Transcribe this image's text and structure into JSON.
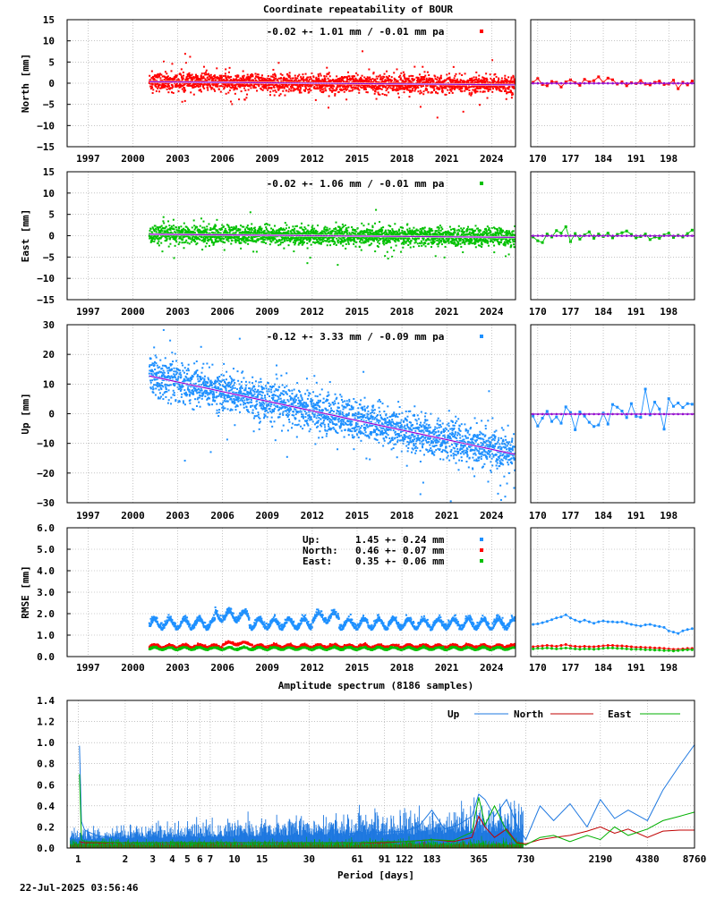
{
  "title": "Coordinate repeatability of BOUR",
  "footer_timestamp": "22-Jul-2025 03:56:46",
  "colors": {
    "north": "#ff0000",
    "east": "#00c000",
    "up": "#1e90ff",
    "trend": "#9400d3",
    "spectrum_up": "#1e78e0",
    "spectrum_north": "#c00000",
    "spectrum_east": "#00b000"
  },
  "left_xticks": [
    "1997",
    "2000",
    "2003",
    "2006",
    "2009",
    "2012",
    "2015",
    "2018",
    "2021",
    "2024"
  ],
  "right_xticks": [
    "170",
    "177",
    "184",
    "191",
    "198"
  ],
  "chart_data": [
    {
      "type": "scatter",
      "name": "north",
      "ylabel": "North [mm]",
      "ylim": [
        -15,
        15
      ],
      "yticks": [
        "15",
        "10",
        "5",
        "0",
        "−5",
        "−10",
        "−15"
      ],
      "annotation": "-0.02 +- 1.01 mm / -0.01 mm pa",
      "data_start_year": 2001.1,
      "data_end_year": 2025.55,
      "mean": -0.02,
      "std": 1.01,
      "trend_mm_per_year": -0.01,
      "recent_days": [
        169,
        170,
        171,
        172,
        173,
        174,
        175,
        176,
        177,
        178,
        179,
        180,
        181,
        182,
        183,
        184,
        185,
        186,
        187,
        188,
        189,
        190,
        191,
        192,
        193,
        194,
        195,
        196,
        197,
        198,
        199,
        200,
        201,
        202,
        203
      ],
      "recent_values": [
        0.2,
        1.1,
        -0.3,
        -0.6,
        0.4,
        0.2,
        -0.9,
        0.3,
        0.8,
        0.1,
        -0.5,
        0.9,
        0.3,
        0.6,
        1.5,
        0.2,
        1.2,
        0.8,
        -0.2,
        0.3,
        -0.6,
        0.1,
        -0.1,
        0.6,
        -0.2,
        -0.4,
        0.2,
        0.5,
        -0.3,
        -0.2,
        0.7,
        -1.3,
        0.2,
        -0.4,
        0.5
      ]
    },
    {
      "type": "scatter",
      "name": "east",
      "ylabel": "East [mm]",
      "ylim": [
        -15,
        15
      ],
      "yticks": [
        "15",
        "10",
        "5",
        "0",
        "−5",
        "−10",
        "−15"
      ],
      "annotation": "-0.02 +- 1.06 mm / -0.01 mm pa",
      "data_start_year": 2001.1,
      "data_end_year": 2025.55,
      "mean": -0.02,
      "std": 1.06,
      "trend_mm_per_year": -0.01,
      "recent_days": [
        169,
        170,
        171,
        172,
        173,
        174,
        175,
        176,
        177,
        178,
        179,
        180,
        181,
        182,
        183,
        184,
        185,
        186,
        187,
        188,
        189,
        190,
        191,
        192,
        193,
        194,
        195,
        196,
        197,
        198,
        199,
        200,
        201,
        202,
        203
      ],
      "recent_values": [
        -0.3,
        -1.2,
        -1.6,
        0.4,
        -0.3,
        1.2,
        0.6,
        2.1,
        -1.4,
        0.5,
        -0.8,
        0.2,
        0.9,
        -0.6,
        0.4,
        -0.2,
        0.6,
        -0.5,
        0.3,
        0.7,
        1.1,
        0.3,
        -0.5,
        -0.2,
        0.4,
        -0.9,
        -0.3,
        -0.6,
        0.2,
        0.6,
        -0.4,
        0.1,
        -0.3,
        0.5,
        1.3
      ]
    },
    {
      "type": "scatter",
      "name": "up",
      "ylabel": "Up [mm]",
      "ylim": [
        -30,
        30
      ],
      "yticks": [
        "30",
        "20",
        "10",
        "0",
        "−10",
        "−20",
        "−30"
      ],
      "annotation": "-0.12 +- 3.33 mm / -0.09 mm pa",
      "data_start_year": 2001.1,
      "data_end_year": 2025.55,
      "mean": -0.12,
      "std": 3.33,
      "trend_mm_per_year": -0.09,
      "recent_days": [
        169,
        170,
        171,
        172,
        173,
        174,
        175,
        176,
        177,
        178,
        179,
        180,
        181,
        182,
        183,
        184,
        185,
        186,
        187,
        188,
        189,
        190,
        191,
        192,
        193,
        194,
        195,
        196,
        197,
        198,
        199,
        200,
        201,
        202,
        203
      ],
      "recent_values": [
        -0.8,
        -4.2,
        -1.5,
        0.8,
        -2.6,
        -1.1,
        -3.2,
        2.3,
        0.4,
        -5.4,
        0.6,
        -0.8,
        -2.9,
        -4.3,
        -3.8,
        0.2,
        -3.5,
        3.1,
        2.2,
        0.9,
        -1.3,
        3.4,
        -0.9,
        -1.2,
        8.3,
        -0.4,
        3.9,
        1.6,
        -5.2,
        5.1,
        2.5,
        3.6,
        2.1,
        3.4,
        3.2
      ]
    },
    {
      "type": "scatter",
      "name": "rmse",
      "ylabel": "RMSE [mm]",
      "ylim": [
        0,
        6
      ],
      "yticks": [
        "6.0",
        "5.0",
        "4.0",
        "3.0",
        "2.0",
        "1.0",
        "0.0"
      ],
      "legend": [
        {
          "label": "Up:",
          "value": "1.45 +- 0.24 mm",
          "color": "#1e90ff"
        },
        {
          "label": "North:",
          "value": "0.46 +- 0.07 mm",
          "color": "#ff0000"
        },
        {
          "label": "East:",
          "value": "0.35 +- 0.06 mm",
          "color": "#00c000"
        }
      ],
      "data_start_year": 2001.1,
      "data_end_year": 2025.55,
      "recent_days": [
        169,
        170,
        171,
        172,
        173,
        174,
        175,
        176,
        177,
        178,
        179,
        180,
        181,
        182,
        183,
        184,
        185,
        186,
        187,
        188,
        189,
        190,
        191,
        192,
        193,
        194,
        195,
        196,
        197,
        198,
        199,
        200,
        201,
        202,
        203
      ],
      "recent_up": [
        1.5,
        1.52,
        1.58,
        1.64,
        1.72,
        1.8,
        1.85,
        1.95,
        1.8,
        1.7,
        1.62,
        1.7,
        1.62,
        1.55,
        1.62,
        1.66,
        1.62,
        1.62,
        1.6,
        1.62,
        1.55,
        1.5,
        1.46,
        1.42,
        1.48,
        1.5,
        1.44,
        1.4,
        1.36,
        1.2,
        1.14,
        1.08,
        1.2,
        1.26,
        1.3
      ],
      "recent_north": [
        0.46,
        0.48,
        0.5,
        0.52,
        0.5,
        0.48,
        0.52,
        0.56,
        0.5,
        0.48,
        0.46,
        0.48,
        0.46,
        0.46,
        0.48,
        0.5,
        0.52,
        0.52,
        0.5,
        0.5,
        0.48,
        0.46,
        0.44,
        0.44,
        0.42,
        0.42,
        0.4,
        0.4,
        0.38,
        0.36,
        0.34,
        0.34,
        0.36,
        0.38,
        0.38
      ],
      "recent_east": [
        0.36,
        0.38,
        0.38,
        0.4,
        0.38,
        0.36,
        0.38,
        0.4,
        0.38,
        0.36,
        0.34,
        0.36,
        0.36,
        0.34,
        0.36,
        0.38,
        0.4,
        0.4,
        0.38,
        0.38,
        0.36,
        0.34,
        0.34,
        0.34,
        0.32,
        0.32,
        0.3,
        0.3,
        0.28,
        0.28,
        0.26,
        0.28,
        0.3,
        0.32,
        0.32
      ]
    },
    {
      "type": "line",
      "name": "spectrum",
      "title": "Amplitude spectrum (8186 samples)",
      "xlabel": "Period [days]",
      "ylim": [
        0,
        1.4
      ],
      "yticks": [
        "1.4",
        "1.2",
        "1.0",
        "0.8",
        "0.6",
        "0.4",
        "0.2",
        "0.0"
      ],
      "xtick_periods": [
        1,
        2,
        3,
        4,
        5,
        6,
        7,
        10,
        15,
        30,
        61,
        91,
        122,
        183,
        365,
        730,
        2190,
        4380,
        8760
      ],
      "legend": [
        "Up",
        "North",
        "East"
      ],
      "series": [
        {
          "name": "Up",
          "periods": [
            1.02,
            1.05,
            1.1,
            1.3,
            1.6,
            2,
            3,
            5,
            8,
            12,
            20,
            30,
            45,
            60,
            91,
            122,
            150,
            183,
            220,
            270,
            330,
            365,
            400,
            460,
            550,
            640,
            730,
            900,
            1100,
            1400,
            1800,
            2190,
            2700,
            3300,
            4380,
            5500,
            7000,
            8760
          ],
          "values": [
            0.97,
            0.25,
            0.17,
            0.12,
            0.1,
            0.09,
            0.09,
            0.1,
            0.1,
            0.11,
            0.11,
            0.12,
            0.13,
            0.14,
            0.15,
            0.16,
            0.2,
            0.36,
            0.18,
            0.22,
            0.3,
            0.51,
            0.46,
            0.3,
            0.46,
            0.22,
            0.08,
            0.4,
            0.26,
            0.42,
            0.2,
            0.46,
            0.28,
            0.36,
            0.26,
            0.55,
            0.78,
            0.98
          ]
        },
        {
          "name": "North",
          "periods": [
            1.02,
            1.1,
            2,
            5,
            10,
            20,
            30,
            60,
            91,
            122,
            183,
            250,
            330,
            365,
            400,
            460,
            550,
            640,
            730,
            900,
            1100,
            1400,
            1800,
            2190,
            2700,
            3300,
            4380,
            5500,
            7000,
            8760
          ],
          "values": [
            0.06,
            0.05,
            0.05,
            0.05,
            0.05,
            0.05,
            0.05,
            0.05,
            0.05,
            0.06,
            0.08,
            0.06,
            0.1,
            0.3,
            0.2,
            0.1,
            0.18,
            0.05,
            0.04,
            0.08,
            0.1,
            0.12,
            0.16,
            0.2,
            0.14,
            0.18,
            0.1,
            0.16,
            0.17,
            0.17
          ]
        },
        {
          "name": "East",
          "periods": [
            1.02,
            1.05,
            1.1,
            2,
            5,
            10,
            20,
            30,
            60,
            91,
            122,
            183,
            250,
            330,
            365,
            400,
            460,
            550,
            640,
            730,
            900,
            1100,
            1400,
            1800,
            2190,
            2700,
            3300,
            4380,
            5500,
            7000,
            8760
          ],
          "values": [
            0.7,
            0.08,
            0.06,
            0.05,
            0.05,
            0.05,
            0.05,
            0.05,
            0.05,
            0.06,
            0.06,
            0.08,
            0.07,
            0.15,
            0.48,
            0.22,
            0.4,
            0.16,
            0.04,
            0.03,
            0.1,
            0.12,
            0.06,
            0.12,
            0.08,
            0.2,
            0.12,
            0.18,
            0.26,
            0.3,
            0.34
          ]
        }
      ]
    }
  ]
}
